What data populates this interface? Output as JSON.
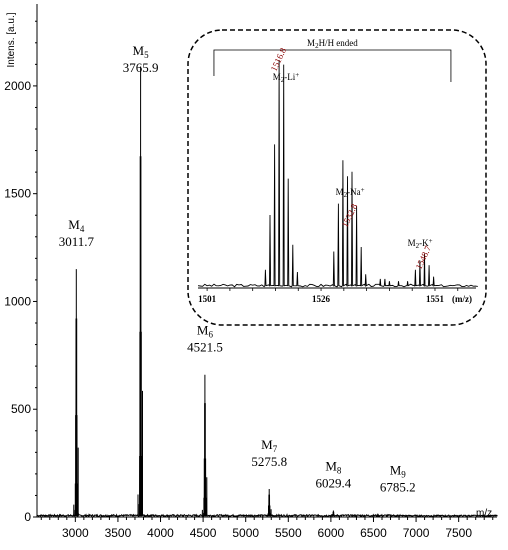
{
  "chart_data": {
    "type": "line",
    "ylabel": "Intens. [a.u.]",
    "xlabel": "m/z",
    "xlim": [
      2550,
      7950
    ],
    "ylim": [
      0,
      2380
    ],
    "x_ticks": [
      3000,
      3500,
      4000,
      4500,
      5000,
      5500,
      6000,
      6500,
      7000,
      7500
    ],
    "y_ticks": [
      0,
      500,
      1000,
      1500,
      2000
    ],
    "peaks": [
      {
        "name": "M4",
        "sub": "4",
        "mz": 3011.7,
        "mz_label": "3011.7",
        "intensity": 1150
      },
      {
        "name": "M5",
        "sub": "5",
        "mz": 3765.9,
        "mz_label": "3765.9",
        "intensity": 2090
      },
      {
        "name": "M6",
        "sub": "6",
        "mz": 4521.5,
        "mz_label": "4521.5",
        "intensity": 660
      },
      {
        "name": "M7",
        "sub": "7",
        "mz": 5275.8,
        "mz_label": "5275.8",
        "intensity": 130
      },
      {
        "name": "M8",
        "sub": "8",
        "mz": 6029.4,
        "mz_label": "6029.4",
        "intensity": 30
      },
      {
        "name": "M9",
        "sub": "9",
        "mz": 6785.2,
        "mz_label": "6785.2",
        "intensity": 12
      }
    ],
    "inset": {
      "title": "M2H/H ended",
      "xlabel": "(m/z)",
      "xlim": [
        1499,
        1560
      ],
      "x_ticks": [
        1501,
        1526,
        1551
      ],
      "peaks": [
        {
          "mz": 1513.8,
          "rel": 0.08
        },
        {
          "mz": 1514.8,
          "rel": 0.32
        },
        {
          "mz": 1515.8,
          "rel": 0.63
        },
        {
          "mz": 1516.8,
          "rel": 1.0
        },
        {
          "mz": 1517.8,
          "rel": 0.98
        },
        {
          "mz": 1518.8,
          "rel": 0.48
        },
        {
          "mz": 1519.8,
          "rel": 0.19
        },
        {
          "mz": 1520.8,
          "rel": 0.07
        },
        {
          "mz": 1528.8,
          "rel": 0.16
        },
        {
          "mz": 1529.8,
          "rel": 0.37
        },
        {
          "mz": 1530.8,
          "rel": 0.56
        },
        {
          "mz": 1531.8,
          "rel": 0.49
        },
        {
          "mz": 1532.8,
          "rel": 0.51
        },
        {
          "mz": 1533.8,
          "rel": 0.36
        },
        {
          "mz": 1534.8,
          "rel": 0.18
        },
        {
          "mz": 1535.8,
          "rel": 0.06
        },
        {
          "mz": 1539.0,
          "rel": 0.04
        },
        {
          "mz": 1540.0,
          "rel": 0.04
        },
        {
          "mz": 1541.0,
          "rel": 0.03
        },
        {
          "mz": 1543.0,
          "rel": 0.03
        },
        {
          "mz": 1545.0,
          "rel": 0.03
        },
        {
          "mz": 1546.7,
          "rel": 0.08
        },
        {
          "mz": 1547.7,
          "rel": 0.12
        },
        {
          "mz": 1548.7,
          "rel": 0.15
        },
        {
          "mz": 1549.7,
          "rel": 0.1
        },
        {
          "mz": 1550.7,
          "rel": 0.05
        }
      ],
      "annotations": [
        {
          "label": "M2-Li+",
          "mz": 1516.8,
          "mz_label": "1516.8"
        },
        {
          "label": "M2-Na+",
          "mz": 1532.8,
          "mz_label": "1532.8"
        },
        {
          "label": "M2-K+",
          "mz": 1548.7,
          "mz_label": "1548.7"
        }
      ]
    }
  }
}
